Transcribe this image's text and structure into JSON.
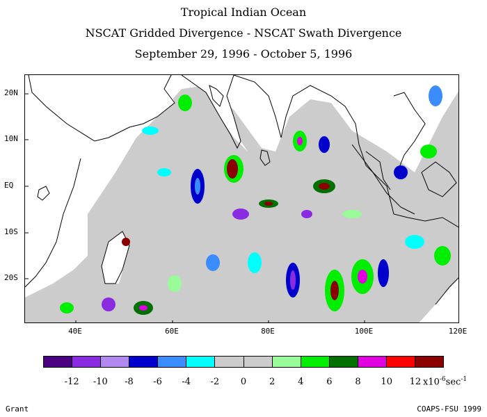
{
  "titles": {
    "line1": "Tropical Indian Ocean",
    "line2": "NSCAT Gridded Divergence - NSCAT Swath Divergence",
    "line3": "September 29, 1996 - October 5, 1996"
  },
  "axes": {
    "lat_labels": [
      "20N",
      "10N",
      "EQ",
      "10S",
      "20S"
    ],
    "lon_labels": [
      "40E",
      "60E",
      "80E",
      "100E",
      "120E"
    ]
  },
  "colorbar": {
    "colors": [
      "#4b0082",
      "#8a2be2",
      "#b088f0",
      "#0000cd",
      "#3a8cff",
      "#00ffff",
      "#cccccc",
      "#cccccc",
      "#98fb98",
      "#00ee00",
      "#007000",
      "#e000e0",
      "#ff0000",
      "#8b0000"
    ],
    "labels": [
      "-12",
      "-10",
      "-8",
      "-6",
      "-4",
      "-2",
      "0",
      "2",
      "4",
      "6",
      "8",
      "10",
      "12"
    ],
    "units_prefix": "x10",
    "units_exp": "-6",
    "units_suffix": "sec",
    "units_suffix_exp": "-1"
  },
  "footer": {
    "left": "Grant",
    "right": "COAPS-FSU 1999"
  }
}
